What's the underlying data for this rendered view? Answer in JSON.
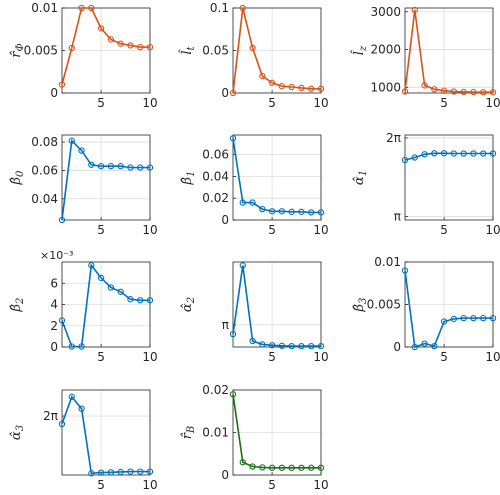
{
  "colors": {
    "orange": "#D95319",
    "blue": "#0072BD",
    "green": "#1B6E1B"
  },
  "chart_data": [
    {
      "type": "line",
      "ylabel": "r̂_Φ",
      "ylabel_main": "r̂",
      "ylabel_sub": "Φ",
      "color": "orange",
      "x": [
        1,
        2,
        3,
        4,
        5,
        6,
        7,
        8,
        9,
        10
      ],
      "values": [
        0.001,
        0.0053,
        0.01,
        0.01,
        0.0076,
        0.0063,
        0.0058,
        0.0056,
        0.0054,
        0.0054
      ],
      "ylim": [
        0,
        0.01
      ],
      "xlim": [
        1,
        10
      ],
      "yticks": [
        0,
        0.005,
        0.01
      ],
      "ytick_labels": [
        "0",
        "0.005",
        "0.01"
      ],
      "xticks": [
        5,
        10
      ],
      "xtick_labels": [
        "5",
        "10"
      ],
      "grid": true
    },
    {
      "type": "line",
      "ylabel": "l̂_t",
      "ylabel_main": "l̂",
      "ylabel_sub": "t",
      "color": "orange",
      "x": [
        1,
        2,
        3,
        4,
        5,
        6,
        7,
        8,
        9,
        10
      ],
      "values": [
        0,
        0.1,
        0.053,
        0.02,
        0.012,
        0.008,
        0.007,
        0.006,
        0.005,
        0.005
      ],
      "ylim": [
        0,
        0.1
      ],
      "xlim": [
        1,
        10
      ],
      "yticks": [
        0,
        0.05,
        0.1
      ],
      "ytick_labels": [
        "0",
        "0.05",
        "0.1"
      ],
      "xticks": [
        5,
        10
      ],
      "xtick_labels": [
        "5",
        "10"
      ],
      "grid": true
    },
    {
      "type": "line",
      "ylabel": "l̂_z",
      "ylabel_main": "l̂",
      "ylabel_sub": "z",
      "color": "orange",
      "x": [
        1,
        2,
        3,
        4,
        5,
        6,
        7,
        8,
        9,
        10
      ],
      "values": [
        890,
        3050,
        1050,
        950,
        910,
        890,
        880,
        875,
        870,
        870
      ],
      "ylim": [
        850,
        3100
      ],
      "xlim": [
        1,
        10
      ],
      "yticks": [
        1000,
        2000,
        3000
      ],
      "ytick_labels": [
        "1000",
        "2000",
        "3000"
      ],
      "xticks": [
        5,
        10
      ],
      "xtick_labels": [
        "5",
        "10"
      ],
      "grid": true
    },
    {
      "type": "line",
      "ylabel": "β̂_0",
      "ylabel_main": "β̂",
      "ylabel_sub": "0",
      "color": "blue",
      "x": [
        1,
        2,
        3,
        4,
        5,
        6,
        7,
        8,
        9,
        10
      ],
      "values": [
        0.025,
        0.081,
        0.074,
        0.064,
        0.063,
        0.063,
        0.063,
        0.062,
        0.062,
        0.062
      ],
      "ylim": [
        0.025,
        0.085
      ],
      "xlim": [
        1,
        10
      ],
      "yticks": [
        0.04,
        0.06,
        0.08
      ],
      "ytick_labels": [
        "0.04",
        "0.06",
        "0.08"
      ],
      "xticks": [
        5,
        10
      ],
      "xtick_labels": [
        "5",
        "10"
      ],
      "grid": true
    },
    {
      "type": "line",
      "ylabel": "β̂_1",
      "ylabel_main": "β̂",
      "ylabel_sub": "1",
      "color": "blue",
      "x": [
        1,
        2,
        3,
        4,
        5,
        6,
        7,
        8,
        9,
        10
      ],
      "values": [
        0.075,
        0.016,
        0.016,
        0.01,
        0.008,
        0.008,
        0.0075,
        0.0075,
        0.007,
        0.007
      ],
      "ylim": [
        0,
        0.078
      ],
      "xlim": [
        1,
        10
      ],
      "yticks": [
        0,
        0.02,
        0.04,
        0.06
      ],
      "ytick_labels": [
        "0",
        "0.02",
        "0.04",
        "0.06"
      ],
      "xticks": [
        5,
        10
      ],
      "xtick_labels": [
        "5",
        "10"
      ],
      "grid": true
    },
    {
      "type": "line",
      "ylabel": "α̂_1",
      "ylabel_main": "α̂",
      "ylabel_sub": "1",
      "color": "blue",
      "x": [
        1,
        2,
        3,
        4,
        5,
        6,
        7,
        8,
        9,
        10
      ],
      "values": [
        5.4,
        5.5,
        5.63,
        5.67,
        5.67,
        5.66,
        5.66,
        5.66,
        5.66,
        5.66
      ],
      "ylim": [
        3.0,
        6.4
      ],
      "xlim": [
        1,
        10
      ],
      "yticks": [
        3.14159,
        6.28318
      ],
      "ytick_labels": [
        "π",
        "2π"
      ],
      "xticks": [
        5,
        10
      ],
      "xtick_labels": [
        "5",
        "10"
      ],
      "grid": true
    },
    {
      "type": "line",
      "ylabel": "β̂_2",
      "ylabel_main": "β̂",
      "ylabel_sub": "2",
      "color": "blue",
      "x": [
        1,
        2,
        3,
        4,
        5,
        6,
        7,
        8,
        9,
        10
      ],
      "values": [
        2.5,
        0.05,
        0.05,
        7.7,
        6.5,
        5.6,
        5.2,
        4.5,
        4.4,
        4.4
      ],
      "ylim": [
        0,
        8
      ],
      "xlim": [
        1,
        10
      ],
      "yticks": [
        0,
        2,
        4,
        6
      ],
      "ytick_labels": [
        "0",
        "2",
        "4",
        "6"
      ],
      "y_exponent": "×10⁻³",
      "xticks": [
        5,
        10
      ],
      "xtick_labels": [
        "5",
        "10"
      ],
      "grid": true
    },
    {
      "type": "line",
      "ylabel": "α̂_2",
      "ylabel_main": "α̂",
      "ylabel_sub": "2",
      "color": "blue",
      "x": [
        1,
        2,
        3,
        4,
        5,
        6,
        7,
        8,
        9,
        10
      ],
      "values": [
        2.6,
        6.6,
        2.2,
        2.0,
        1.95,
        1.92,
        1.9,
        1.9,
        1.9,
        1.9
      ],
      "ylim": [
        1.85,
        6.8
      ],
      "xlim": [
        1,
        10
      ],
      "yticks": [
        3.14159
      ],
      "ytick_labels": [
        "π"
      ],
      "xticks": [
        5,
        10
      ],
      "xtick_labels": [
        "5",
        "10"
      ],
      "grid": true
    },
    {
      "type": "line",
      "ylabel": "β̂_3",
      "ylabel_main": "β̂",
      "ylabel_sub": "3",
      "color": "blue",
      "x": [
        1,
        2,
        3,
        4,
        5,
        6,
        7,
        8,
        9,
        10
      ],
      "values": [
        0.009,
        0,
        0.0004,
        0.0001,
        0.003,
        0.0033,
        0.0034,
        0.0034,
        0.0034,
        0.0034
      ],
      "ylim": [
        0,
        0.01
      ],
      "xlim": [
        1,
        10
      ],
      "yticks": [
        0,
        0.005,
        0.01
      ],
      "ytick_labels": [
        "0",
        "0.005",
        "0.01"
      ],
      "xticks": [
        5,
        10
      ],
      "xtick_labels": [
        "5",
        "10"
      ],
      "grid": true
    },
    {
      "type": "line",
      "ylabel": "α̂_3",
      "ylabel_main": "α̂",
      "ylabel_sub": "3",
      "color": "blue",
      "x": [
        1,
        2,
        3,
        4,
        5,
        6,
        7,
        8,
        9,
        10
      ],
      "values": [
        6.05,
        6.85,
        6.5,
        4.6,
        4.62,
        4.63,
        4.64,
        4.65,
        4.65,
        4.65
      ],
      "ylim": [
        4.55,
        7.05
      ],
      "xlim": [
        1,
        10
      ],
      "yticks": [
        6.28318
      ],
      "ytick_labels": [
        "2π"
      ],
      "xticks": [
        5,
        10
      ],
      "xtick_labels": [
        "5",
        "10"
      ],
      "grid": true
    },
    {
      "type": "line",
      "ylabel": "r̂_B",
      "ylabel_main": "r̂",
      "ylabel_sub": "B",
      "color": "green",
      "x": [
        1,
        2,
        3,
        4,
        5,
        6,
        7,
        8,
        9,
        10
      ],
      "values": [
        0.019,
        0.003,
        0.002,
        0.0018,
        0.0017,
        0.0017,
        0.0017,
        0.0017,
        0.0017,
        0.0017
      ],
      "ylim": [
        0,
        0.02
      ],
      "xlim": [
        1,
        10
      ],
      "yticks": [
        0,
        0.01,
        0.02
      ],
      "ytick_labels": [
        "0",
        "0.01",
        "0.02"
      ],
      "xticks": [
        5,
        10
      ],
      "xtick_labels": [
        "5",
        "10"
      ],
      "grid": true
    }
  ]
}
